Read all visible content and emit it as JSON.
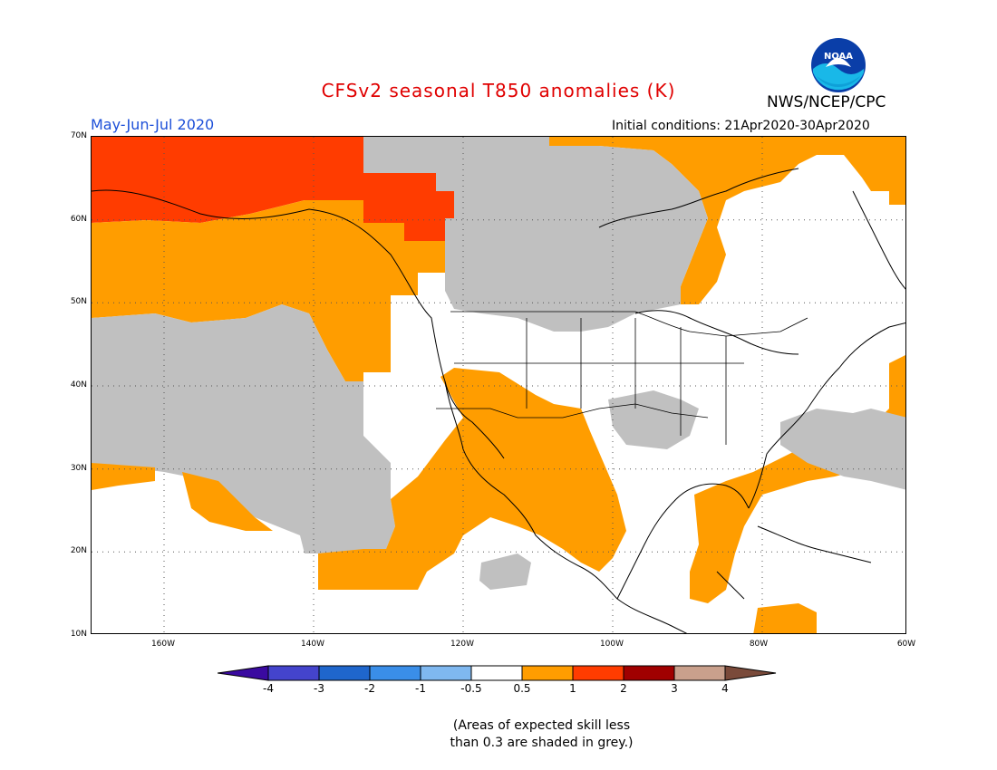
{
  "title": "CFSv2 seasonal T850 anomalies (K)",
  "agency": "NWS/NCEP/CPC",
  "period": "May-Jun-Jul 2020",
  "initial_conditions": "Initial conditions: 21Apr2020-30Apr2020",
  "logo_text": "NOAA",
  "colors": {
    "title": "#e00000",
    "period": "#1c4fd8",
    "land_outline": "#000000",
    "grey_low_skill": "#c0c0c0",
    "grid": "#555555"
  },
  "lat_labels": [
    "70N",
    "60N",
    "50N",
    "40N",
    "30N",
    "20N",
    "10N"
  ],
  "lon_labels": [
    "160W",
    "140W",
    "120W",
    "100W",
    "80W",
    "60W"
  ],
  "colorbar": {
    "tick_labels": [
      "-4",
      "-3",
      "-2",
      "-1",
      "-0.5",
      "0.5",
      "1",
      "2",
      "3",
      "4"
    ],
    "colors": [
      "#3a0aa0",
      "#4444cc",
      "#1f66cc",
      "#3a8ee8",
      "#7fb8f0",
      "#ffffff",
      "#ff9d00",
      "#ff3c00",
      "#a00000",
      "#c9a08c",
      "#7a4a3a"
    ]
  },
  "note_lines": [
    "(Areas of expected skill less",
    "than 0.3 are shaded in grey.)"
  ]
}
